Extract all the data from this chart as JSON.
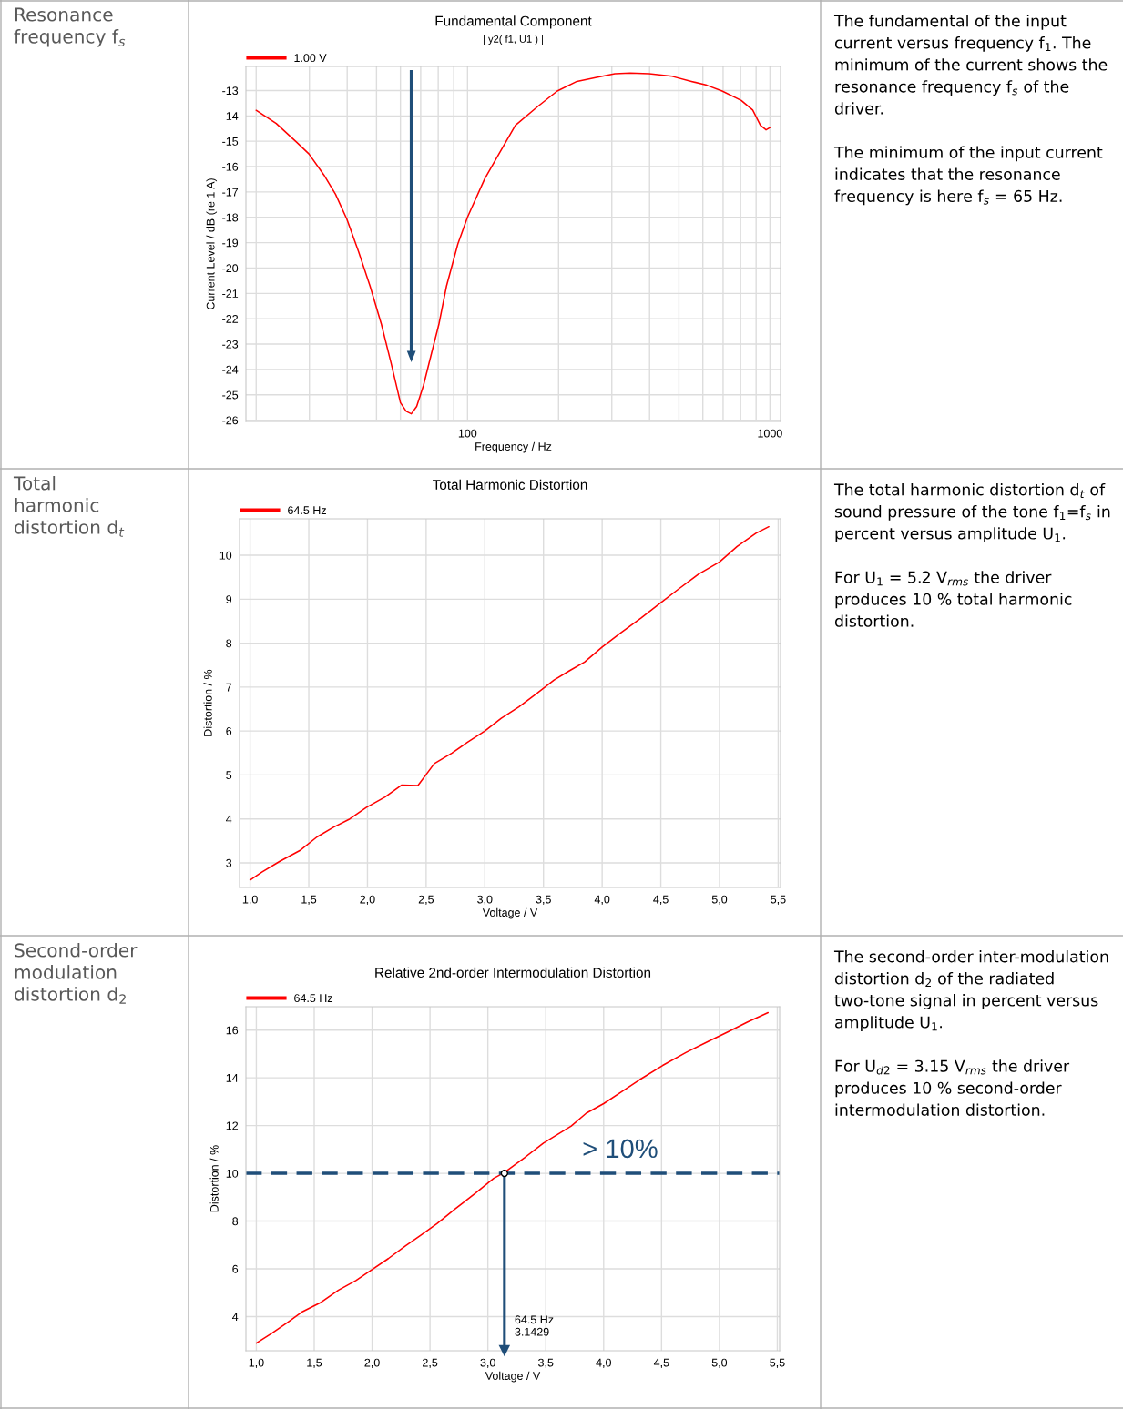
{
  "chart_data": [
    {
      "type": "other",
      "annotations": [
        "Resonance\nfrequency f$_{s}$"
      ]
    },
    {
      "type": "line",
      "title": "Fundamental Component",
      "subtitle": "| y2( f1, U1 ) |",
      "xlabel": "Frequency / Hz",
      "ylabel": "Current Level / dB (re 1 A)",
      "log": "x",
      "grid": true,
      "legend": "top left",
      "x": [
        20.0,
        23.3,
        27.3,
        29.9,
        33.5,
        36.6,
        39.9,
        43.6,
        47.6,
        51.9,
        55.8,
        60.0,
        62.7,
        65.2,
        67.9,
        71.5,
        75.8,
        80.4,
        85.2,
        92.9,
        100,
        114,
        128,
        144,
        171,
        198,
        230,
        265,
        307,
        345,
        399,
        475,
        550,
        618,
        695,
        804,
        877,
        930,
        971,
        1000
      ],
      "series": [
        {
          "name": "1.00 V",
          "color": "#ff0000",
          "values": [
            -13.78,
            -14.3,
            -15.05,
            -15.5,
            -16.33,
            -17.09,
            -18.07,
            -19.35,
            -20.71,
            -22.22,
            -23.72,
            -25.31,
            -25.65,
            -25.75,
            -25.46,
            -24.63,
            -23.42,
            -22.22,
            -20.71,
            -19.05,
            -17.99,
            -16.48,
            -15.43,
            -14.37,
            -13.62,
            -13.02,
            -12.64,
            -12.49,
            -12.34,
            -12.31,
            -12.34,
            -12.44,
            -12.64,
            -12.79,
            -13.02,
            -13.39,
            -13.77,
            -14.37,
            -14.55,
            -14.46
          ]
        }
      ],
      "xlim": [
        18.5,
        1084
      ],
      "ylim": [
        -26.05,
        -12.05
      ],
      "xticks": [
        {
          "value": 20,
          "label": null
        },
        {
          "value": 30,
          "label": null
        },
        {
          "value": 40,
          "label": null
        },
        {
          "value": 50,
          "label": null
        },
        {
          "value": 60,
          "label": null
        },
        {
          "value": 70,
          "label": null
        },
        {
          "value": 80,
          "label": null
        },
        {
          "value": 90,
          "label": null
        },
        100,
        {
          "value": 200,
          "label": null
        },
        {
          "value": 300,
          "label": null
        },
        {
          "value": 400,
          "label": null
        },
        {
          "value": 500,
          "label": null
        },
        {
          "value": 600,
          "label": null
        },
        {
          "value": 700,
          "label": null
        },
        {
          "value": 800,
          "label": null
        },
        {
          "value": 900,
          "label": null
        },
        1000
      ],
      "yticks": [
        -26,
        -25,
        -24,
        -23,
        -22,
        -21,
        -20,
        -19,
        -18,
        -17,
        -16,
        -15,
        -14,
        -13
      ]
    },
    {
      "type": "other",
      "annotations": [
        "The fundamental of the input current versus frequency f$_{1}$. The minimum of the current shows the resonance frequency f$_{s}$ of the driver.",
        "The minimum of the input current indicates that the resonance frequency is here f$_{s}$ = 65 Hz."
      ]
    },
    {
      "type": "other",
      "annotations": [
        "Total\nharmonic\ndistortion d$_{t}$"
      ]
    },
    {
      "type": "line",
      "title": "Total Harmonic Distortion",
      "xlabel": "Voltage / V",
      "ylabel": "Distortion / %",
      "grid": true,
      "legend": "top left",
      "x": [
        1.0,
        1.1,
        1.25,
        1.43,
        1.57,
        1.71,
        1.85,
        1.99,
        2.15,
        2.29,
        2.43,
        2.57,
        2.72,
        2.85,
        3.0,
        3.14,
        3.29,
        3.44,
        3.59,
        3.72,
        3.85,
        4.0,
        4.16,
        4.33,
        4.49,
        4.65,
        4.82,
        5.0,
        5.15,
        5.31,
        5.42
      ],
      "series": [
        {
          "name": "64.5 Hz",
          "color": "#ff0000",
          "values": [
            2.61,
            2.79,
            3.03,
            3.29,
            3.59,
            3.81,
            4.0,
            4.26,
            4.5,
            4.77,
            4.76,
            5.26,
            5.5,
            5.74,
            6.0,
            6.29,
            6.55,
            6.85,
            7.16,
            7.37,
            7.57,
            7.91,
            8.24,
            8.57,
            8.9,
            9.23,
            9.57,
            9.85,
            10.2,
            10.5,
            10.65
          ]
        }
      ],
      "xlim": [
        0.91,
        5.52
      ],
      "ylim": [
        2.44,
        10.83
      ],
      "xticks": [
        {
          "value": 1.0,
          "label": "1,0"
        },
        {
          "value": 1.5,
          "label": "1,5"
        },
        {
          "value": 2.0,
          "label": "2,0"
        },
        {
          "value": 2.5,
          "label": "2,5"
        },
        {
          "value": 3.0,
          "label": "3,0"
        },
        {
          "value": 3.5,
          "label": "3,5"
        },
        {
          "value": 4.0,
          "label": "4,0"
        },
        {
          "value": 4.5,
          "label": "4,5"
        },
        {
          "value": 5.0,
          "label": "5,0"
        },
        {
          "value": 5.5,
          "label": "5,5"
        }
      ],
      "yticks": [
        3,
        4,
        5,
        6,
        7,
        8,
        9,
        10
      ]
    },
    {
      "type": "other",
      "annotations": [
        "The total harmonic distortion d$_{t}$ of sound pressure of the tone f$_{1}$=f$_{s}$ in percent versus amplitude U$_{1}$.",
        "For U$_{1}$ = 5.2 V$_{rms}$ the driver produces 10 % total harmonic distortion."
      ]
    },
    {
      "type": "other",
      "annotations": [
        "Second-order\nmodulation\ndistortion d$_{2}$"
      ]
    },
    {
      "type": "line",
      "title": "Relative 2nd-order Intermodulation Distortion",
      "xlabel": "Voltage / V",
      "ylabel": "Distortion / %",
      "grid": true,
      "legend": "top left",
      "x": [
        1.0,
        1.13,
        1.27,
        1.4,
        1.56,
        1.71,
        1.86,
        1.99,
        2.14,
        2.29,
        2.42,
        2.56,
        2.72,
        2.89,
        3.05,
        3.14,
        3.32,
        3.48,
        3.72,
        3.85,
        4.0,
        4.15,
        4.31,
        4.51,
        4.71,
        4.91,
        5.08,
        5.24,
        5.42
      ],
      "series": [
        {
          "name": "64.5 Hz",
          "color": "#ff0000",
          "values": [
            2.89,
            3.29,
            3.76,
            4.21,
            4.6,
            5.11,
            5.51,
            5.94,
            6.43,
            6.97,
            7.41,
            7.89,
            8.52,
            9.16,
            9.79,
            10.03,
            10.67,
            11.27,
            11.98,
            12.52,
            12.92,
            13.4,
            13.92,
            14.52,
            15.06,
            15.54,
            15.94,
            16.33,
            16.73
          ]
        }
      ],
      "xlim": [
        0.91,
        5.52
      ],
      "ylim": [
        2.57,
        16.98
      ],
      "xticks": [
        {
          "value": 1.0,
          "label": "1,0"
        },
        {
          "value": 1.5,
          "label": "1,5"
        },
        {
          "value": 2.0,
          "label": "2,0"
        },
        {
          "value": 2.5,
          "label": "2,5"
        },
        {
          "value": 3.0,
          "label": "3,0"
        },
        {
          "value": 3.5,
          "label": "3,5"
        },
        {
          "value": 4.0,
          "label": "4,0"
        },
        {
          "value": 4.5,
          "label": "4,5"
        },
        {
          "value": 5.0,
          "label": "5,0"
        },
        {
          "value": 5.5,
          "label": "5,5"
        }
      ],
      "yticks": [
        4,
        6,
        8,
        10,
        12,
        14,
        16
      ],
      "ref_lines": [
        {
          "axis": "y",
          "value": 10,
          "label": "> 10%",
          "color": "#1f4e79",
          "line_style": "dashed"
        },
        {
          "axis": "x",
          "value": 3.1429,
          "label": "64.5 Hz\n3.1429",
          "color": "#1f4e79",
          "line_style": "solid"
        }
      ]
    },
    {
      "type": "other",
      "annotations": [
        "The second-order inter-modulation distortion d$_{2}$ of the radiated two-tone signal in percent versus amplitude U$_{1}$.",
        "For U$_{d2}$ = 3.15 V$_{rms}$ the driver produces 10 % second-order intermodulation distortion."
      ]
    }
  ]
}
